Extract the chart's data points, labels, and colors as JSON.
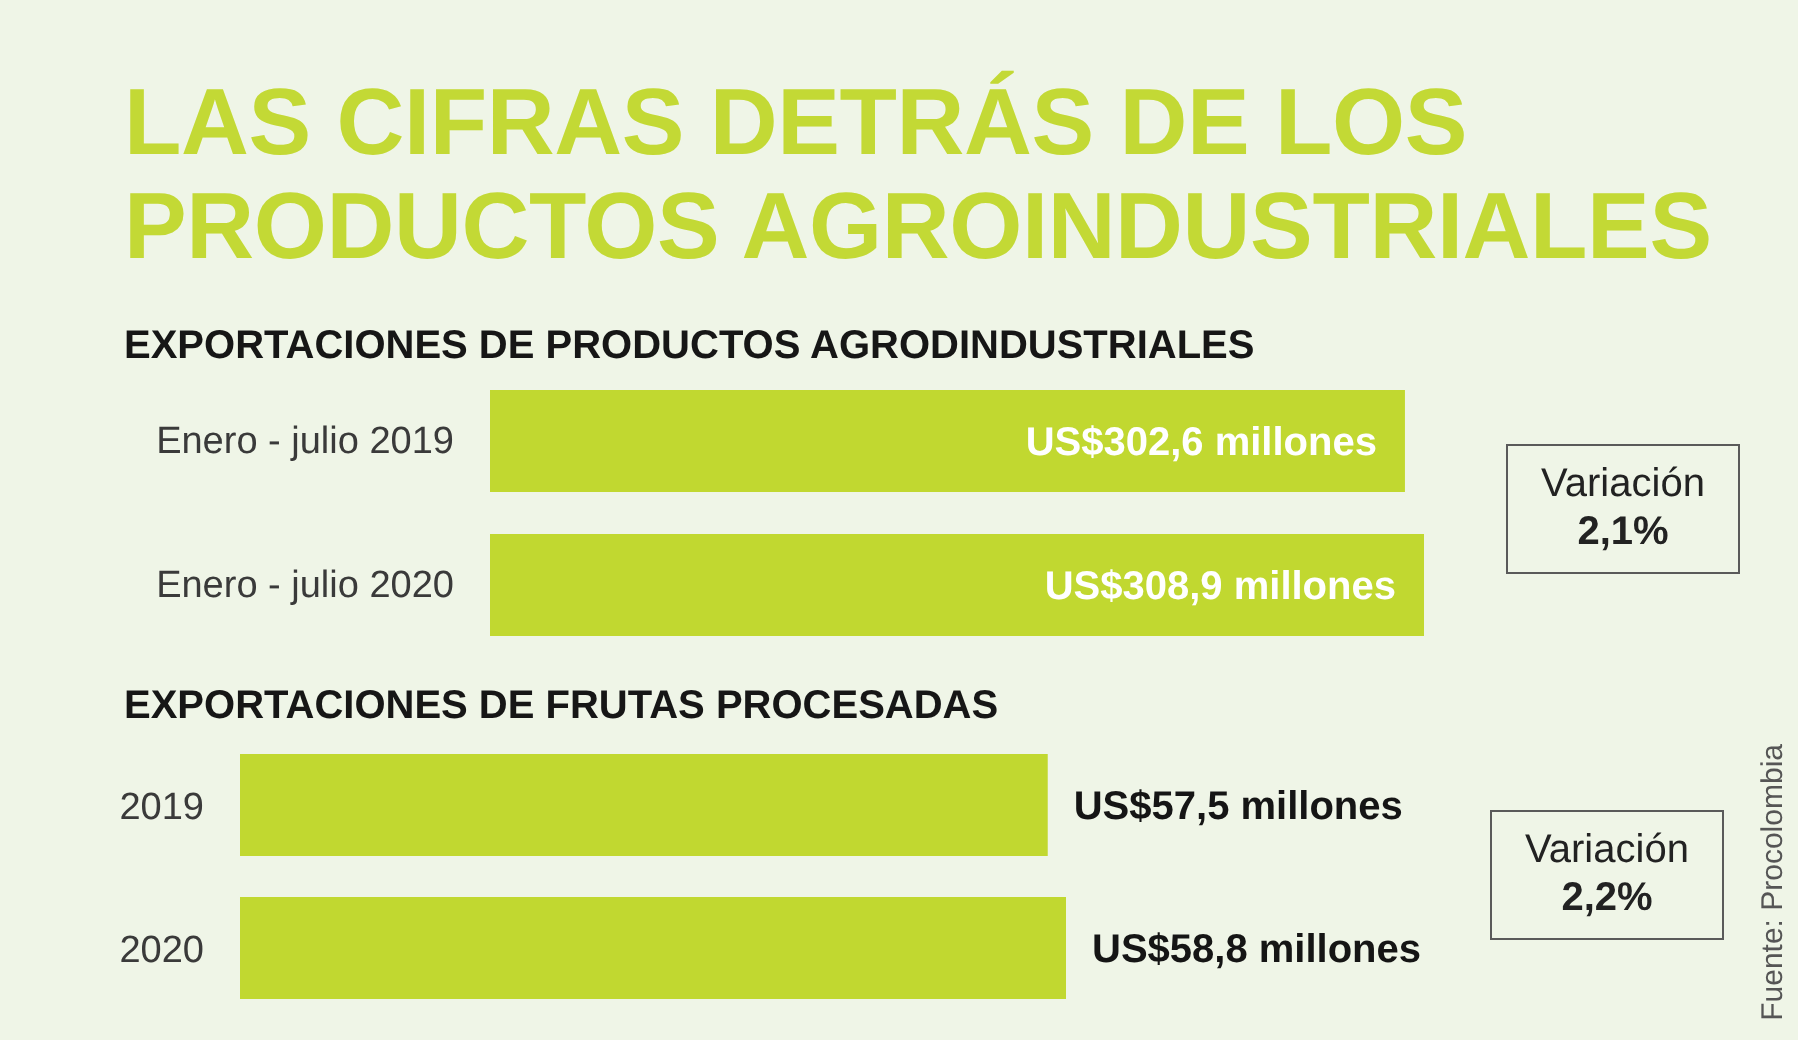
{
  "chart_data": [
    {
      "type": "bar",
      "orientation": "horizontal",
      "title": "LAS CIFRAS DETRÁS DE LOS PRODUCTOS AGROINDUSTRIALES",
      "subtitle": "EXPORTACIONES DE PRODUCTOS AGRODINDUSTRIALES",
      "categories": [
        "Enero - julio 2019",
        "Enero - julio 2020"
      ],
      "values": [
        302.6,
        308.9
      ],
      "value_labels": [
        "US$302,6 millones",
        "US$308,9 millones"
      ],
      "color": "#c1d830",
      "tick_labels": "y",
      "annotations": [
        "Variación",
        "2,1%"
      ]
    },
    {
      "type": "bar",
      "orientation": "horizontal",
      "title": "EXPORTACIONES DE FRUTAS PROCESADAS",
      "categories": [
        "2019",
        "2020"
      ],
      "values": [
        57.5,
        58.8
      ],
      "value_labels": [
        "US$57,5 millones",
        "US$58,8 millones"
      ],
      "color": "#c1d830",
      "tick_labels": "y",
      "annotations": [
        "Variación",
        "2,2%",
        "Fuente: Procolombia"
      ]
    }
  ]
}
